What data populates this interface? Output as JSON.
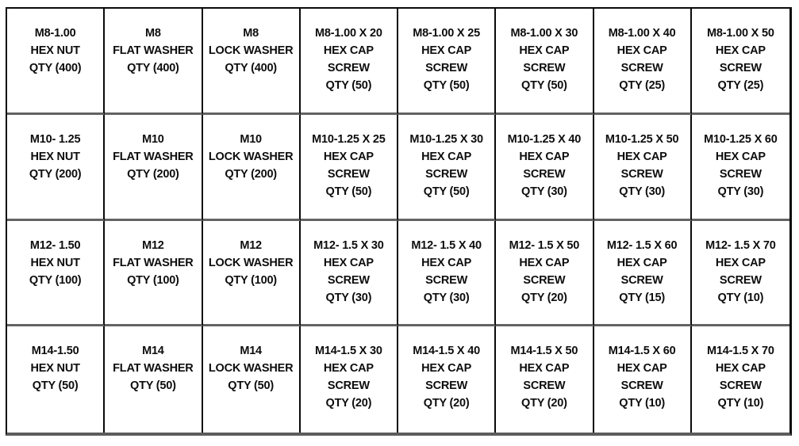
{
  "colors": {
    "background": "#ffffff",
    "text": "#0d0d0d",
    "vertical_border": "#0a0a0a",
    "horizontal_border": "#636363"
  },
  "grid": {
    "columns": 8,
    "rows": 4,
    "cells": [
      [
        "M8-1.00",
        "HEX NUT",
        "QTY (400)"
      ],
      [
        "M8",
        "FLAT WASHER",
        "QTY (400)"
      ],
      [
        "M8",
        "LOCK WASHER",
        "QTY (400)"
      ],
      [
        "M8-1.00 X 20",
        "HEX CAP",
        "SCREW",
        "QTY (50)"
      ],
      [
        "M8-1.00 X 25",
        "HEX CAP",
        "SCREW",
        "QTY (50)"
      ],
      [
        "M8-1.00 X 30",
        "HEX CAP",
        "SCREW",
        "QTY (50)"
      ],
      [
        "M8-1.00 X 40",
        "HEX CAP",
        "SCREW",
        "QTY (25)"
      ],
      [
        "M8-1.00 X 50",
        "HEX CAP",
        "SCREW",
        "QTY (25)"
      ],
      [
        "M10- 1.25",
        "HEX NUT",
        "QTY (200)"
      ],
      [
        "M10",
        "FLAT WASHER",
        "QTY (200)"
      ],
      [
        "M10",
        "LOCK WASHER",
        "QTY (200)"
      ],
      [
        "M10-1.25 X 25",
        "HEX CAP",
        "SCREW",
        "QTY (50)"
      ],
      [
        "M10-1.25 X 30",
        "HEX CAP",
        "SCREW",
        "QTY (50)"
      ],
      [
        "M10-1.25 X 40",
        "HEX CAP",
        "SCREW",
        "QTY (30)"
      ],
      [
        "M10-1.25 X 50",
        "HEX CAP",
        "SCREW",
        "QTY (30)"
      ],
      [
        "M10-1.25 X 60",
        "HEX CAP",
        "SCREW",
        "QTY (30)"
      ],
      [
        "M12- 1.50",
        "HEX NUT",
        "QTY (100)"
      ],
      [
        "M12",
        "FLAT WASHER",
        "QTY (100)"
      ],
      [
        "M12",
        "LOCK WASHER",
        "QTY (100)"
      ],
      [
        "M12- 1.5 X 30",
        "HEX CAP",
        "SCREW",
        "QTY (30)"
      ],
      [
        "M12- 1.5 X 40",
        "HEX CAP",
        "SCREW",
        "QTY (30)"
      ],
      [
        "M12- 1.5 X 50",
        "HEX CAP",
        "SCREW",
        "QTY (20)"
      ],
      [
        "M12- 1.5 X 60",
        "HEX CAP",
        "SCREW",
        "QTY (15)"
      ],
      [
        "M12- 1.5 X 70",
        "HEX CAP",
        "SCREW",
        "QTY (10)"
      ],
      [
        "M14-1.50",
        "HEX NUT",
        "QTY (50)"
      ],
      [
        "M14",
        "FLAT WASHER",
        "QTY (50)"
      ],
      [
        "M14",
        "LOCK WASHER",
        "QTY (50)"
      ],
      [
        "M14-1.5 X 30",
        "HEX CAP",
        "SCREW",
        "QTY (20)"
      ],
      [
        "M14-1.5 X 40",
        "HEX CAP",
        "SCREW",
        "QTY (20)"
      ],
      [
        "M14-1.5 X 50",
        "HEX CAP",
        "SCREW",
        "QTY (20)"
      ],
      [
        "M14-1.5 X 60",
        "HEX CAP",
        "SCREW",
        "QTY (10)"
      ],
      [
        "M14-1.5 X 70",
        "HEX CAP",
        "SCREW",
        "QTY (10)"
      ]
    ]
  }
}
